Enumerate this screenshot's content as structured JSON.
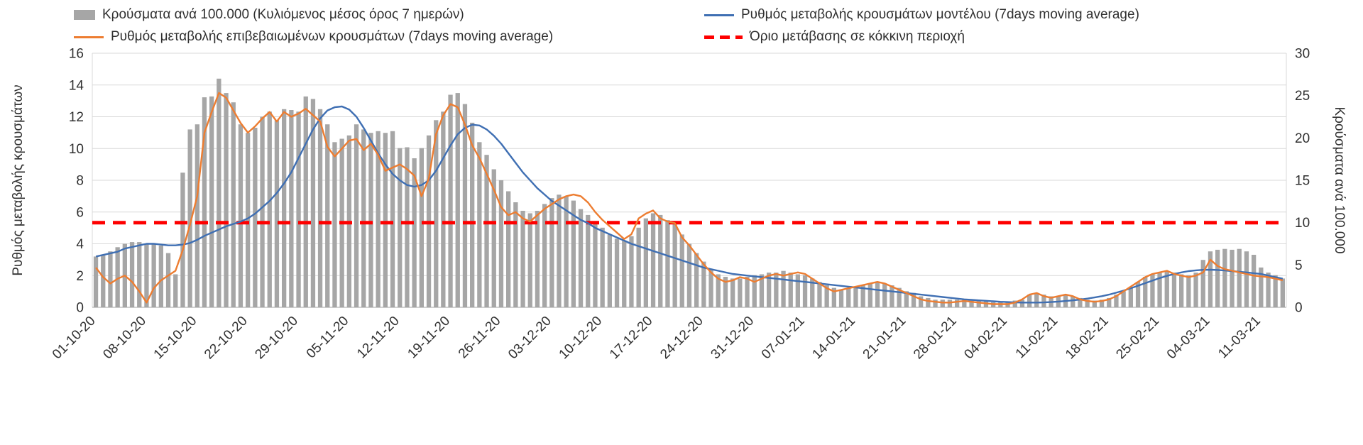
{
  "legend": {
    "bars": {
      "label": "Κρούσματα ανά 100.000 (Κυλιόμενος μέσος όρος 7 ημερών)",
      "color": "#a6a6a6"
    },
    "model": {
      "label": "Ρυθμός μεταβολής κρουσμάτων μοντέλου (7days moving average)",
      "color": "#3f6fb3"
    },
    "confirmed": {
      "label": "Ρυθμός μεταβολής επιβεβαιωμένων κρουσμάτων (7days moving average)",
      "color": "#ed7d31"
    },
    "threshold": {
      "label": "Όριο μετάβασης σε κόκκινη περιοχή",
      "color": "#fe0000"
    }
  },
  "chart_data": {
    "type": "bar",
    "subtype": "combo-bar-two-lines-threshold",
    "left_axis": {
      "label": "Ρυθμός μεταβολής κρουσμάτων",
      "min": 0,
      "max": 16,
      "ticks": [
        0,
        2,
        4,
        6,
        8,
        10,
        12,
        14,
        16
      ]
    },
    "right_axis": {
      "label": "Κρούσματα ανά 100.000",
      "min": 0,
      "max": 30,
      "ticks": [
        0,
        5,
        10,
        15,
        20,
        25,
        30
      ]
    },
    "x_unit": "day",
    "x_tick_every_n_points": 7,
    "x_tick_labels": [
      "01-10-20",
      "08-10-20",
      "15-10-20",
      "22-10-20",
      "29-10-20",
      "05-11-20",
      "12-11-20",
      "19-11-20",
      "26-11-20",
      "03-12-20",
      "10-12-20",
      "17-12-20",
      "24-12-20",
      "31-12-20",
      "07-01-21",
      "14-01-21",
      "21-01-21",
      "28-01-21",
      "04-02-21",
      "11-02-21",
      "18-02-21",
      "25-02-21",
      "04-03-21",
      "11-03-21"
    ],
    "grid": "horizontal",
    "legend_position": "top",
    "series": [
      {
        "name": "Κρούσματα ανά 100.000 (Κυλιόμενος μέσος όρος 7 ημερών)",
        "type": "bar",
        "axis": "right",
        "color": "#a6a6a6",
        "values": [
          6.0,
          6.2,
          6.6,
          7.1,
          7.5,
          7.7,
          7.7,
          7.5,
          7.5,
          7.3,
          6.4,
          3.9,
          15.9,
          21.0,
          21.6,
          24.8,
          24.9,
          27.0,
          25.3,
          24.2,
          21.6,
          20.6,
          21.2,
          22.5,
          23.1,
          22.1,
          23.4,
          23.3,
          23.1,
          24.9,
          24.6,
          23.4,
          21.6,
          19.5,
          19.9,
          20.3,
          21.6,
          21.0,
          20.6,
          20.8,
          20.6,
          20.8,
          18.8,
          18.9,
          17.6,
          18.8,
          20.3,
          22.1,
          23.1,
          25.1,
          25.3,
          24.0,
          21.8,
          19.5,
          18.0,
          16.3,
          15.0,
          13.7,
          12.4,
          11.4,
          11.1,
          11.4,
          12.2,
          12.9,
          13.3,
          13.1,
          12.6,
          11.6,
          10.9,
          10.1,
          9.4,
          8.6,
          8.1,
          7.9,
          8.4,
          9.4,
          10.5,
          11.1,
          10.9,
          10.3,
          9.8,
          8.6,
          7.5,
          6.4,
          5.4,
          4.5,
          3.9,
          3.6,
          3.4,
          3.4,
          3.6,
          3.8,
          3.9,
          4.1,
          4.1,
          4.3,
          4.1,
          3.9,
          3.8,
          3.4,
          3.0,
          2.6,
          2.3,
          2.1,
          2.3,
          2.4,
          2.6,
          2.8,
          3.0,
          2.8,
          2.6,
          2.3,
          1.9,
          1.7,
          1.3,
          1.1,
          0.9,
          0.9,
          0.9,
          0.9,
          0.9,
          0.9,
          0.8,
          0.8,
          0.6,
          0.6,
          0.6,
          0.8,
          0.9,
          1.5,
          1.7,
          1.5,
          1.3,
          1.3,
          1.5,
          1.3,
          1.1,
          0.9,
          0.8,
          0.9,
          1.1,
          1.5,
          1.9,
          2.4,
          3.0,
          3.6,
          3.9,
          4.1,
          4.3,
          4.1,
          3.9,
          3.8,
          4.1,
          5.6,
          6.6,
          6.8,
          6.9,
          6.8,
          6.9,
          6.6,
          6.2,
          4.7,
          4.1,
          3.8,
          3.4
        ]
      },
      {
        "name": "Ρυθμός μεταβολής κρουσμάτων μοντέλου (7days moving average)",
        "type": "line",
        "axis": "left",
        "color": "#3f6fb3",
        "values": [
          3.2,
          3.3,
          3.4,
          3.5,
          3.7,
          3.8,
          3.9,
          4.0,
          4.0,
          3.95,
          3.9,
          3.9,
          3.95,
          4.05,
          4.25,
          4.5,
          4.7,
          4.9,
          5.1,
          5.25,
          5.4,
          5.6,
          5.9,
          6.3,
          6.7,
          7.2,
          7.8,
          8.5,
          9.4,
          10.3,
          11.2,
          11.9,
          12.4,
          12.6,
          12.65,
          12.45,
          12.0,
          11.3,
          10.5,
          9.7,
          9.0,
          8.4,
          8.0,
          7.7,
          7.6,
          7.7,
          8.0,
          8.6,
          9.4,
          10.2,
          10.9,
          11.3,
          11.5,
          11.45,
          11.2,
          10.8,
          10.3,
          9.7,
          9.1,
          8.5,
          8.0,
          7.5,
          7.1,
          6.7,
          6.4,
          6.1,
          5.8,
          5.5,
          5.3,
          5.0,
          4.8,
          4.6,
          4.4,
          4.2,
          4.0,
          3.85,
          3.7,
          3.55,
          3.4,
          3.25,
          3.1,
          2.95,
          2.8,
          2.65,
          2.5,
          2.4,
          2.3,
          2.2,
          2.1,
          2.05,
          2.0,
          1.95,
          1.9,
          1.85,
          1.8,
          1.75,
          1.7,
          1.65,
          1.6,
          1.55,
          1.5,
          1.45,
          1.4,
          1.35,
          1.3,
          1.25,
          1.2,
          1.15,
          1.1,
          1.05,
          1.0,
          0.95,
          0.9,
          0.85,
          0.8,
          0.75,
          0.7,
          0.65,
          0.6,
          0.55,
          0.5,
          0.47,
          0.44,
          0.41,
          0.38,
          0.35,
          0.33,
          0.31,
          0.3,
          0.3,
          0.3,
          0.31,
          0.33,
          0.36,
          0.4,
          0.44,
          0.49,
          0.55,
          0.62,
          0.7,
          0.8,
          0.92,
          1.05,
          1.2,
          1.36,
          1.52,
          1.68,
          1.84,
          1.98,
          2.1,
          2.2,
          2.28,
          2.33,
          2.36,
          2.37,
          2.35,
          2.32,
          2.28,
          2.24,
          2.2,
          2.15,
          2.1,
          2.0,
          1.9,
          1.8
        ]
      },
      {
        "name": "Ρυθμός μεταβολής επιβεβαιωμένων κρουσμάτων (7days moving average)",
        "type": "line",
        "axis": "left",
        "color": "#ed7d31",
        "values": [
          2.5,
          1.9,
          1.5,
          1.8,
          2.0,
          1.6,
          1.0,
          0.3,
          1.2,
          1.7,
          2.0,
          2.3,
          3.6,
          5.2,
          7.0,
          11.0,
          12.3,
          13.5,
          13.2,
          12.4,
          11.6,
          11.0,
          11.4,
          11.9,
          12.3,
          11.7,
          12.3,
          12.0,
          12.2,
          12.5,
          12.1,
          11.7,
          10.1,
          9.5,
          10.0,
          10.5,
          10.6,
          9.9,
          10.3,
          9.6,
          8.6,
          8.8,
          9.0,
          8.7,
          8.3,
          7.0,
          8.1,
          10.9,
          12.1,
          12.8,
          12.6,
          11.5,
          10.2,
          9.4,
          8.4,
          7.4,
          6.3,
          5.8,
          6.0,
          5.6,
          5.4,
          5.8,
          6.2,
          6.5,
          6.8,
          7.0,
          7.1,
          7.0,
          6.6,
          6.0,
          5.5,
          5.1,
          4.7,
          4.3,
          4.6,
          5.6,
          5.9,
          6.1,
          5.6,
          5.4,
          5.3,
          4.4,
          3.9,
          3.3,
          2.7,
          2.2,
          1.8,
          1.6,
          1.7,
          1.9,
          1.8,
          1.6,
          1.8,
          2.0,
          2.1,
          2.0,
          2.1,
          2.2,
          2.1,
          1.8,
          1.5,
          1.2,
          1.0,
          1.1,
          1.2,
          1.3,
          1.4,
          1.5,
          1.6,
          1.5,
          1.3,
          1.1,
          0.9,
          0.7,
          0.5,
          0.4,
          0.35,
          0.3,
          0.3,
          0.35,
          0.4,
          0.35,
          0.3,
          0.25,
          0.2,
          0.2,
          0.2,
          0.3,
          0.5,
          0.8,
          0.9,
          0.7,
          0.6,
          0.7,
          0.8,
          0.7,
          0.5,
          0.4,
          0.35,
          0.4,
          0.5,
          0.7,
          1.0,
          1.3,
          1.6,
          1.9,
          2.1,
          2.2,
          2.3,
          2.1,
          2.0,
          1.9,
          2.0,
          2.2,
          3.0,
          2.6,
          2.4,
          2.3,
          2.2,
          2.1,
          2.0,
          1.95,
          1.9,
          1.8,
          1.7
        ]
      },
      {
        "name": "Όριο μετάβασης σε κόκκινη περιοχή",
        "type": "threshold",
        "axis": "right",
        "color": "#fe0000",
        "value": 10
      }
    ]
  }
}
